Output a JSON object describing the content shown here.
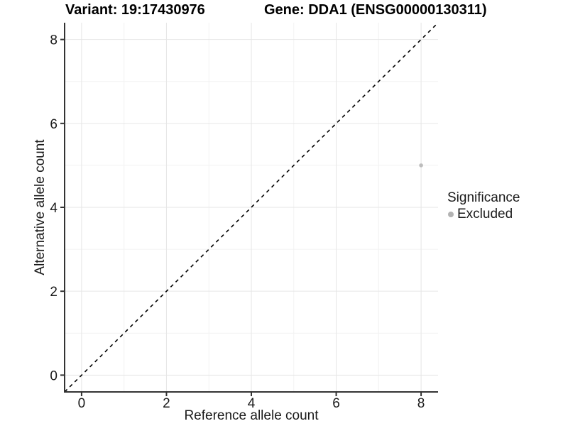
{
  "titles": {
    "variant": "Variant: 19:17430976",
    "gene": "Gene: DDA1 (ENSG00000130311)"
  },
  "chart_data": {
    "type": "scatter",
    "title_left": "Variant: 19:17430976",
    "title_right": "Gene: DDA1 (ENSG00000130311)",
    "xlabel": "Reference allele count",
    "ylabel": "Alternative allele count",
    "xlim": [
      -0.4,
      8.4
    ],
    "ylim": [
      -0.4,
      8.4
    ],
    "x_ticks": [
      0,
      2,
      4,
      6,
      8
    ],
    "y_ticks": [
      0,
      2,
      4,
      6,
      8
    ],
    "minor_ticks": [
      1,
      3,
      5,
      7
    ],
    "grid": true,
    "identity_line": {
      "style": "dashed",
      "from": -0.4,
      "to": 8.4
    },
    "series": [
      {
        "name": "Excluded",
        "color": "#bdbdbd",
        "points": [
          {
            "x": 8,
            "y": 5
          }
        ]
      }
    ],
    "legend": {
      "title": "Significance",
      "position": "right",
      "items": [
        {
          "label": "Excluded",
          "color": "#b3b3b3"
        }
      ]
    }
  },
  "colors": {
    "background": "#ffffff",
    "grid_major": "#e6e6e6",
    "grid_minor": "#f2f2f2",
    "axis_line": "#333333",
    "tick_mark": "#333333",
    "axis_text": "#1a1a1a",
    "title_text": "#000000",
    "identity_line": "#000000",
    "point": "#bdbdbd",
    "legend_point": "#b3b3b3"
  }
}
